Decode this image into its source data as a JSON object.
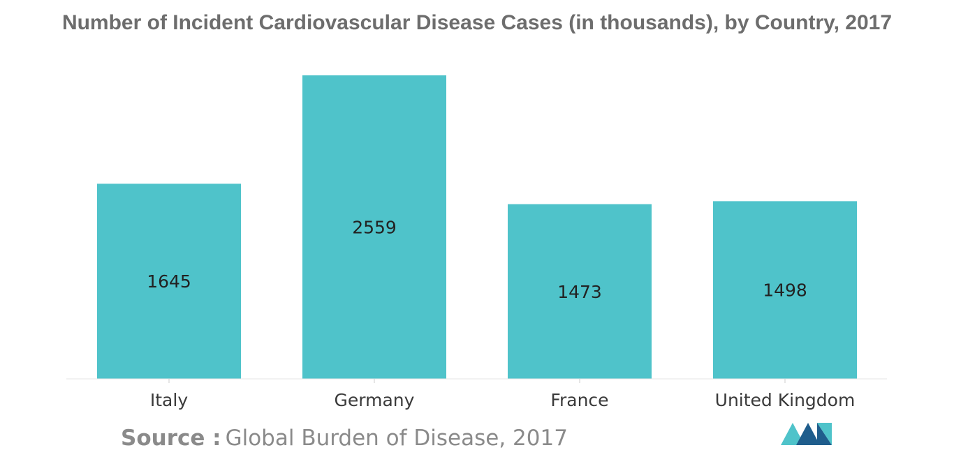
{
  "chart_data": {
    "type": "bar",
    "title": "Number of Incident Cardiovascular Disease Cases (in thousands), by Country, 2017",
    "categories": [
      "Italy",
      "Germany",
      "France",
      "United Kingdom"
    ],
    "values": [
      1645,
      2559,
      1473,
      1498
    ],
    "value_labels": [
      "1645",
      "2559",
      "1473",
      "1498"
    ],
    "xlabel": "",
    "ylabel": "",
    "ylim": [
      0,
      2559
    ],
    "grid": false,
    "bar_color": "#4fc3ca"
  },
  "source": {
    "label": "Source :",
    "text": "Global Burden of Disease, 2017"
  },
  "logo": {
    "icon": "mordor-logo-icon",
    "colors": [
      "#1f5d8c",
      "#4fc3ca"
    ]
  }
}
